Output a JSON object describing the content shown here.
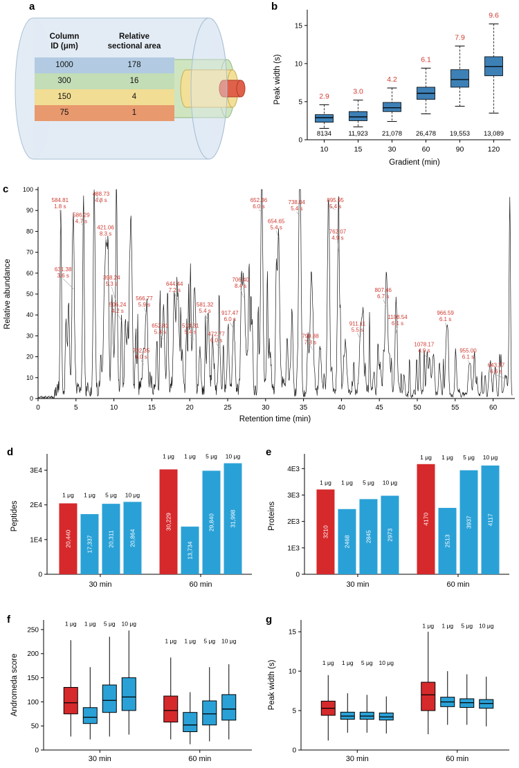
{
  "colors": {
    "red": "#d6292c",
    "blue": "#2aa1d6",
    "box_blue": "#3d80b6",
    "label_red": "#cf3a30",
    "trace": "#1a1a1a"
  },
  "panels": {
    "a": {
      "letter": "a",
      "table": {
        "headers": [
          "Column\nID (μm)",
          "Relative\nsectional area"
        ],
        "rows": [
          {
            "id": "1000",
            "area": "178",
            "color": "#b2cbe2"
          },
          {
            "id": "300",
            "area": "16",
            "color": "#c3ddb6"
          },
          {
            "id": "150",
            "area": "4",
            "color": "#f1dd94"
          },
          {
            "id": "75",
            "area": "1",
            "color": "#e8996d"
          }
        ]
      },
      "diagram": {
        "outer_fill": "#e2ebf4",
        "outer_stroke": "#a9bfd6",
        "green_fill": "#cfe5c0",
        "green_stroke": "#8fb783",
        "yellow_fill": "#f2e098",
        "yellow_stroke": "#c8ab53",
        "red_fill": "#e0614a",
        "red_stroke": "#b03a28"
      }
    },
    "b": {
      "letter": "b"
    },
    "c": {
      "letter": "c"
    },
    "d": {
      "letter": "d"
    },
    "e": {
      "letter": "e"
    },
    "f": {
      "letter": "f"
    },
    "g": {
      "letter": "g"
    }
  },
  "chart_data": [
    {
      "id": "b",
      "type": "box",
      "xlabel": "Gradient (min)",
      "ylabel": "Peak width (s)",
      "categories": [
        "10",
        "15",
        "30",
        "60",
        "90",
        "120"
      ],
      "ylim": [
        0,
        15.8
      ],
      "yticks": [
        0,
        5,
        10,
        15
      ],
      "median_labels": [
        "2.9",
        "3.0",
        "4.2",
        "6.1",
        "7.9",
        "9.6"
      ],
      "counts": [
        "8134",
        "11,923",
        "21,078",
        "26,478",
        "19,553",
        "13,089"
      ],
      "boxes": [
        {
          "lo": 1.5,
          "q1": 2.3,
          "med": 2.9,
          "q3": 3.3,
          "hi": 4.6
        },
        {
          "lo": 1.7,
          "q1": 2.5,
          "med": 3.0,
          "q3": 3.7,
          "hi": 5.2
        },
        {
          "lo": 2.4,
          "q1": 3.7,
          "med": 4.2,
          "q3": 4.9,
          "hi": 6.8
        },
        {
          "lo": 3.4,
          "q1": 5.3,
          "med": 6.1,
          "q3": 6.9,
          "hi": 9.4
        },
        {
          "lo": 4.4,
          "q1": 6.9,
          "med": 7.9,
          "q3": 9.2,
          "hi": 12.3
        },
        {
          "lo": 3.5,
          "q1": 8.4,
          "med": 9.6,
          "q3": 10.9,
          "hi": 15.2
        }
      ],
      "whiskers": "dashed"
    },
    {
      "id": "c",
      "type": "line",
      "xlabel": "Retention time (min)",
      "ylabel": "Relative abundance",
      "xlim": [
        0,
        62.5
      ],
      "ylim": [
        0,
        100
      ],
      "xticks": [
        0,
        5,
        10,
        15,
        20,
        25,
        30,
        35,
        40,
        45,
        50,
        55,
        60
      ],
      "yticks": [
        0,
        10,
        20,
        30,
        40,
        50,
        60,
        70,
        80,
        90,
        100
      ],
      "peaks": [
        {
          "mz": "584.81",
          "width": "1.8 s",
          "rt": 3.0,
          "h": 78,
          "lx": 2.9,
          "ly": 94
        },
        {
          "mz": "586.29",
          "width": "4.7 s",
          "rt": 6.0,
          "h": 83,
          "lx": 5.7,
          "ly": 87
        },
        {
          "mz": "488.73",
          "width": "4.8 s",
          "rt": 7.4,
          "h": 99,
          "lx": 8.3,
          "ly": 97,
          "wd": 0.12
        },
        {
          "mz": "421.06",
          "width": "8.3 s",
          "rt": 9.0,
          "h": 73,
          "lx": 8.9,
          "ly": 81,
          "wd": 0.22
        },
        {
          "mz": "631.38",
          "width": "3.6 s",
          "rt": 4.7,
          "h": 52,
          "lx": 3.3,
          "ly": 61
        },
        {
          "mz": "398.24",
          "width": "5.3 s",
          "rt": 10.3,
          "h": 46,
          "lx": 9.7,
          "ly": 57,
          "wd": 0.14
        },
        {
          "mz": "506.24",
          "width": "4.2 s",
          "rt": 11.0,
          "h": 37,
          "lx": 10.5,
          "ly": 44
        },
        {
          "mz": "566.77",
          "width": "5.9 s",
          "rt": 14.3,
          "h": 40,
          "lx": 14.0,
          "ly": 47,
          "wd": 0.15
        },
        {
          "mz": "702.35",
          "width": "6.0 s",
          "rt": 13.9,
          "h": 16,
          "lx": 13.6,
          "ly": 22,
          "wd": 0.15
        },
        {
          "mz": "652.81",
          "width": "5.4 s",
          "rt": 16.5,
          "h": 28,
          "lx": 16.1,
          "ly": 34,
          "wd": 0.14
        },
        {
          "mz": "644.44",
          "width": "7.2 s",
          "rt": 18.4,
          "h": 47,
          "lx": 18.0,
          "ly": 54,
          "wd": 0.2
        },
        {
          "mz": "513.31",
          "width": "5.4 s",
          "rt": 20.5,
          "h": 28,
          "lx": 20.1,
          "ly": 34,
          "wd": 0.14
        },
        {
          "mz": "581.32",
          "width": "5.4 s",
          "rt": 22.4,
          "h": 37,
          "lx": 22.0,
          "ly": 44,
          "wd": 0.14
        },
        {
          "mz": "472.77",
          "width": "6.0 s",
          "rt": 23.9,
          "h": 24,
          "lx": 23.5,
          "ly": 30,
          "wd": 0.15
        },
        {
          "mz": "917.47",
          "width": "6.0 s",
          "rt": 25.8,
          "h": 33,
          "lx": 25.3,
          "ly": 40,
          "wd": 0.15
        },
        {
          "mz": "706.40",
          "width": "8.4 s",
          "rt": 27.1,
          "h": 48,
          "lx": 26.7,
          "ly": 56,
          "wd": 0.24
        },
        {
          "mz": "652.36",
          "width": "6.0 s",
          "rt": 29.5,
          "h": 89,
          "lx": 29.1,
          "ly": 94,
          "wd": 0.15
        },
        {
          "mz": "654.65",
          "width": "5.4 s",
          "rt": 31.7,
          "h": 77,
          "lx": 31.4,
          "ly": 84,
          "wd": 0.14
        },
        {
          "mz": "738.04",
          "width": "5.4 s",
          "rt": 34.5,
          "h": 87,
          "lx": 34.1,
          "ly": 93,
          "wd": 0.14
        },
        {
          "mz": "799.88",
          "width": "7.3 s",
          "rt": 36.2,
          "h": 23,
          "lx": 35.9,
          "ly": 29,
          "wd": 0.2
        },
        {
          "mz": "895.95",
          "width": "5.4 s",
          "rt": 38.3,
          "h": 92,
          "lx": 39.2,
          "ly": 94,
          "wd": 0.14
        },
        {
          "mz": "762.07",
          "width": "4.9 s",
          "rt": 39.6,
          "h": 70,
          "lx": 39.5,
          "ly": 79,
          "wd": 0.13
        },
        {
          "mz": "911.11",
          "width": "5.5 s",
          "rt": 42.5,
          "h": 28,
          "lx": 42.1,
          "ly": 35,
          "wd": 0.14
        },
        {
          "mz": "807.46",
          "width": "6.7 s",
          "rt": 45.9,
          "h": 44,
          "lx": 45.5,
          "ly": 51,
          "wd": 0.17
        },
        {
          "mz": "1108.54",
          "width": "6.1 s",
          "rt": 47.2,
          "h": 31,
          "lx": 47.4,
          "ly": 38,
          "wd": 0.16
        },
        {
          "mz": "1078.17",
          "width": "4.9 s",
          "rt": 51.3,
          "h": 19,
          "lx": 50.9,
          "ly": 25,
          "wd": 0.13
        },
        {
          "mz": "966.59",
          "width": "6.1 s",
          "rt": 53.9,
          "h": 33,
          "lx": 53.7,
          "ly": 40,
          "wd": 0.16
        },
        {
          "mz": "955.00",
          "width": "6.1 s",
          "rt": 56.9,
          "h": 16,
          "lx": 56.7,
          "ly": 22,
          "wd": 0.16
        },
        {
          "mz": "643.37",
          "width": "6.6 s",
          "rt": 61.7,
          "h": 9,
          "lx": 60.4,
          "ly": 15,
          "wd": 0.17
        }
      ]
    },
    {
      "id": "d",
      "type": "bar",
      "ylabel": "Peptides",
      "groups": [
        "30 min",
        "60 min"
      ],
      "bar_labels": [
        "1 μg",
        "1 μg",
        "5 μg",
        "10 μg"
      ],
      "bar_colors": [
        "red",
        "blue",
        "blue",
        "blue"
      ],
      "values": [
        [
          20440,
          17337,
          20311,
          20864
        ],
        [
          30229,
          13734,
          29840,
          31998
        ]
      ],
      "value_labels": [
        [
          "20,440",
          "17,337",
          "20,311",
          "20,864"
        ],
        [
          "30,229",
          "13,734",
          "29,840",
          "31,998"
        ]
      ],
      "ylim": [
        0,
        33500
      ],
      "yticks": [
        0,
        10000,
        20000,
        30000
      ],
      "ytick_labels": [
        "0",
        "1E4",
        "2E4",
        "3E4"
      ]
    },
    {
      "id": "e",
      "type": "bar",
      "ylabel": "Proteins",
      "groups": [
        "30 min",
        "60 min"
      ],
      "bar_labels": [
        "1 μg",
        "1 μg",
        "5 μg",
        "10 μg"
      ],
      "bar_colors": [
        "red",
        "blue",
        "blue",
        "blue"
      ],
      "values": [
        [
          3210,
          2468,
          2845,
          2973
        ],
        [
          4170,
          2513,
          3937,
          4117
        ]
      ],
      "value_labels": [
        [
          "3210",
          "2468",
          "2845",
          "2973"
        ],
        [
          "4170",
          "2513",
          "3937",
          "4117"
        ]
      ],
      "ylim": [
        0,
        4400
      ],
      "yticks": [
        0,
        1000,
        2000,
        3000,
        4000
      ],
      "ytick_labels": [
        "0",
        "1E3",
        "2E3",
        "3E3",
        "4E3"
      ]
    },
    {
      "id": "f",
      "type": "groupbox",
      "ylabel": "Andromeda score",
      "groups": [
        "30 min",
        "60 min"
      ],
      "bar_labels": [
        "1 μg",
        "1 μg",
        "5 μg",
        "10 μg"
      ],
      "bar_colors": [
        "red",
        "blue",
        "blue",
        "blue"
      ],
      "ylim": [
        0,
        270
      ],
      "yticks": [
        0,
        50,
        100,
        150,
        200,
        250
      ],
      "label_y": [
        258,
        222
      ],
      "boxes": [
        [
          {
            "lo": 28,
            "q1": 75,
            "med": 98,
            "q3": 130,
            "hi": 228
          },
          {
            "lo": 22,
            "q1": 55,
            "med": 68,
            "q3": 88,
            "hi": 172
          },
          {
            "lo": 28,
            "q1": 78,
            "med": 103,
            "q3": 135,
            "hi": 235
          },
          {
            "lo": 32,
            "q1": 82,
            "med": 110,
            "q3": 150,
            "hi": 248
          }
        ],
        [
          {
            "lo": 22,
            "q1": 58,
            "med": 82,
            "q3": 112,
            "hi": 192
          },
          {
            "lo": 12,
            "q1": 38,
            "med": 52,
            "q3": 78,
            "hi": 120
          },
          {
            "lo": 18,
            "q1": 52,
            "med": 75,
            "q3": 102,
            "hi": 172
          },
          {
            "lo": 22,
            "q1": 62,
            "med": 85,
            "q3": 115,
            "hi": 178
          }
        ]
      ]
    },
    {
      "id": "g",
      "type": "groupbox",
      "ylabel": "Peak width (s)",
      "groups": [
        "30 min",
        "60 min"
      ],
      "bar_labels": [
        "1 μg",
        "1 μg",
        "5 μg",
        "10 μg"
      ],
      "bar_colors": [
        "red",
        "blue",
        "blue",
        "blue"
      ],
      "ylim": [
        0,
        16.5
      ],
      "yticks": [
        0,
        5,
        10,
        15
      ],
      "label_y": [
        10.8,
        15.5
      ],
      "boxes": [
        [
          {
            "lo": 1.2,
            "q1": 4.4,
            "med": 5.3,
            "q3": 6.2,
            "hi": 9.5
          },
          {
            "lo": 2.2,
            "q1": 3.9,
            "med": 4.3,
            "q3": 4.8,
            "hi": 7.2
          },
          {
            "lo": 2.2,
            "q1": 3.9,
            "med": 4.3,
            "q3": 4.8,
            "hi": 7.0
          },
          {
            "lo": 2.1,
            "q1": 3.8,
            "med": 4.2,
            "q3": 4.7,
            "hi": 6.8
          }
        ],
        [
          {
            "lo": 2.0,
            "q1": 5.0,
            "med": 7.0,
            "q3": 8.6,
            "hi": 15.0
          },
          {
            "lo": 3.2,
            "q1": 5.5,
            "med": 6.1,
            "q3": 6.7,
            "hi": 10.0
          },
          {
            "lo": 3.2,
            "q1": 5.4,
            "med": 6.0,
            "q3": 6.5,
            "hi": 9.6
          },
          {
            "lo": 3.0,
            "q1": 5.3,
            "med": 5.9,
            "q3": 6.4,
            "hi": 9.3
          }
        ]
      ]
    }
  ]
}
